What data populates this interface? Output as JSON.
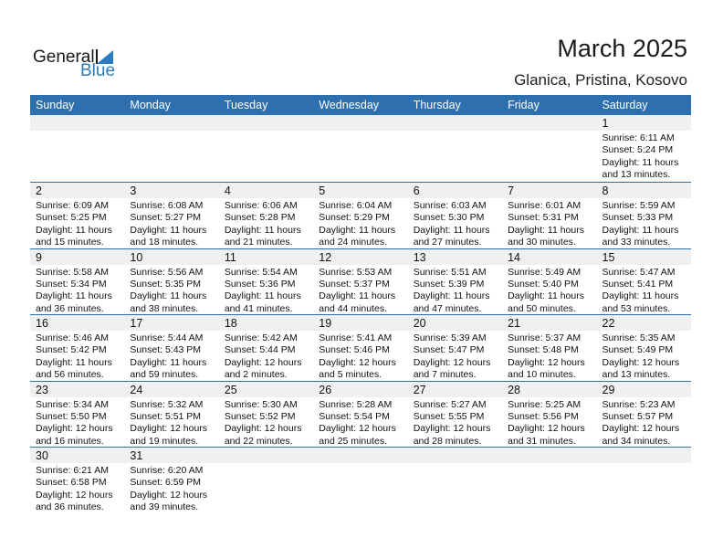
{
  "logo": {
    "text1": "General",
    "text2": "Blue"
  },
  "title": "March 2025",
  "subtitle": "Glanica, Pristina, Kosovo",
  "colors": {
    "header": "#2e6fb0",
    "band": "#f0f0f0",
    "logo_blue": "#2a7bc0"
  },
  "days_of_week": [
    "Sunday",
    "Monday",
    "Tuesday",
    "Wednesday",
    "Thursday",
    "Friday",
    "Saturday"
  ],
  "weeks": [
    [
      null,
      null,
      null,
      null,
      null,
      null,
      {
        "day": "1",
        "sunrise": "Sunrise: 6:11 AM",
        "sunset": "Sunset: 5:24 PM",
        "daylight": "Daylight: 11 hours",
        "minutes": "and 13 minutes."
      }
    ],
    [
      {
        "day": "2",
        "sunrise": "Sunrise: 6:09 AM",
        "sunset": "Sunset: 5:25 PM",
        "daylight": "Daylight: 11 hours",
        "minutes": "and 15 minutes."
      },
      {
        "day": "3",
        "sunrise": "Sunrise: 6:08 AM",
        "sunset": "Sunset: 5:27 PM",
        "daylight": "Daylight: 11 hours",
        "minutes": "and 18 minutes."
      },
      {
        "day": "4",
        "sunrise": "Sunrise: 6:06 AM",
        "sunset": "Sunset: 5:28 PM",
        "daylight": "Daylight: 11 hours",
        "minutes": "and 21 minutes."
      },
      {
        "day": "5",
        "sunrise": "Sunrise: 6:04 AM",
        "sunset": "Sunset: 5:29 PM",
        "daylight": "Daylight: 11 hours",
        "minutes": "and 24 minutes."
      },
      {
        "day": "6",
        "sunrise": "Sunrise: 6:03 AM",
        "sunset": "Sunset: 5:30 PM",
        "daylight": "Daylight: 11 hours",
        "minutes": "and 27 minutes."
      },
      {
        "day": "7",
        "sunrise": "Sunrise: 6:01 AM",
        "sunset": "Sunset: 5:31 PM",
        "daylight": "Daylight: 11 hours",
        "minutes": "and 30 minutes."
      },
      {
        "day": "8",
        "sunrise": "Sunrise: 5:59 AM",
        "sunset": "Sunset: 5:33 PM",
        "daylight": "Daylight: 11 hours",
        "minutes": "and 33 minutes."
      }
    ],
    [
      {
        "day": "9",
        "sunrise": "Sunrise: 5:58 AM",
        "sunset": "Sunset: 5:34 PM",
        "daylight": "Daylight: 11 hours",
        "minutes": "and 36 minutes."
      },
      {
        "day": "10",
        "sunrise": "Sunrise: 5:56 AM",
        "sunset": "Sunset: 5:35 PM",
        "daylight": "Daylight: 11 hours",
        "minutes": "and 38 minutes."
      },
      {
        "day": "11",
        "sunrise": "Sunrise: 5:54 AM",
        "sunset": "Sunset: 5:36 PM",
        "daylight": "Daylight: 11 hours",
        "minutes": "and 41 minutes."
      },
      {
        "day": "12",
        "sunrise": "Sunrise: 5:53 AM",
        "sunset": "Sunset: 5:37 PM",
        "daylight": "Daylight: 11 hours",
        "minutes": "and 44 minutes."
      },
      {
        "day": "13",
        "sunrise": "Sunrise: 5:51 AM",
        "sunset": "Sunset: 5:39 PM",
        "daylight": "Daylight: 11 hours",
        "minutes": "and 47 minutes."
      },
      {
        "day": "14",
        "sunrise": "Sunrise: 5:49 AM",
        "sunset": "Sunset: 5:40 PM",
        "daylight": "Daylight: 11 hours",
        "minutes": "and 50 minutes."
      },
      {
        "day": "15",
        "sunrise": "Sunrise: 5:47 AM",
        "sunset": "Sunset: 5:41 PM",
        "daylight": "Daylight: 11 hours",
        "minutes": "and 53 minutes."
      }
    ],
    [
      {
        "day": "16",
        "sunrise": "Sunrise: 5:46 AM",
        "sunset": "Sunset: 5:42 PM",
        "daylight": "Daylight: 11 hours",
        "minutes": "and 56 minutes."
      },
      {
        "day": "17",
        "sunrise": "Sunrise: 5:44 AM",
        "sunset": "Sunset: 5:43 PM",
        "daylight": "Daylight: 11 hours",
        "minutes": "and 59 minutes."
      },
      {
        "day": "18",
        "sunrise": "Sunrise: 5:42 AM",
        "sunset": "Sunset: 5:44 PM",
        "daylight": "Daylight: 12 hours",
        "minutes": "and 2 minutes."
      },
      {
        "day": "19",
        "sunrise": "Sunrise: 5:41 AM",
        "sunset": "Sunset: 5:46 PM",
        "daylight": "Daylight: 12 hours",
        "minutes": "and 5 minutes."
      },
      {
        "day": "20",
        "sunrise": "Sunrise: 5:39 AM",
        "sunset": "Sunset: 5:47 PM",
        "daylight": "Daylight: 12 hours",
        "minutes": "and 7 minutes."
      },
      {
        "day": "21",
        "sunrise": "Sunrise: 5:37 AM",
        "sunset": "Sunset: 5:48 PM",
        "daylight": "Daylight: 12 hours",
        "minutes": "and 10 minutes."
      },
      {
        "day": "22",
        "sunrise": "Sunrise: 5:35 AM",
        "sunset": "Sunset: 5:49 PM",
        "daylight": "Daylight: 12 hours",
        "minutes": "and 13 minutes."
      }
    ],
    [
      {
        "day": "23",
        "sunrise": "Sunrise: 5:34 AM",
        "sunset": "Sunset: 5:50 PM",
        "daylight": "Daylight: 12 hours",
        "minutes": "and 16 minutes."
      },
      {
        "day": "24",
        "sunrise": "Sunrise: 5:32 AM",
        "sunset": "Sunset: 5:51 PM",
        "daylight": "Daylight: 12 hours",
        "minutes": "and 19 minutes."
      },
      {
        "day": "25",
        "sunrise": "Sunrise: 5:30 AM",
        "sunset": "Sunset: 5:52 PM",
        "daylight": "Daylight: 12 hours",
        "minutes": "and 22 minutes."
      },
      {
        "day": "26",
        "sunrise": "Sunrise: 5:28 AM",
        "sunset": "Sunset: 5:54 PM",
        "daylight": "Daylight: 12 hours",
        "minutes": "and 25 minutes."
      },
      {
        "day": "27",
        "sunrise": "Sunrise: 5:27 AM",
        "sunset": "Sunset: 5:55 PM",
        "daylight": "Daylight: 12 hours",
        "minutes": "and 28 minutes."
      },
      {
        "day": "28",
        "sunrise": "Sunrise: 5:25 AM",
        "sunset": "Sunset: 5:56 PM",
        "daylight": "Daylight: 12 hours",
        "minutes": "and 31 minutes."
      },
      {
        "day": "29",
        "sunrise": "Sunrise: 5:23 AM",
        "sunset": "Sunset: 5:57 PM",
        "daylight": "Daylight: 12 hours",
        "minutes": "and 34 minutes."
      }
    ],
    [
      {
        "day": "30",
        "sunrise": "Sunrise: 6:21 AM",
        "sunset": "Sunset: 6:58 PM",
        "daylight": "Daylight: 12 hours",
        "minutes": "and 36 minutes."
      },
      {
        "day": "31",
        "sunrise": "Sunrise: 6:20 AM",
        "sunset": "Sunset: 6:59 PM",
        "daylight": "Daylight: 12 hours",
        "minutes": "and 39 minutes."
      },
      null,
      null,
      null,
      null,
      null
    ]
  ]
}
